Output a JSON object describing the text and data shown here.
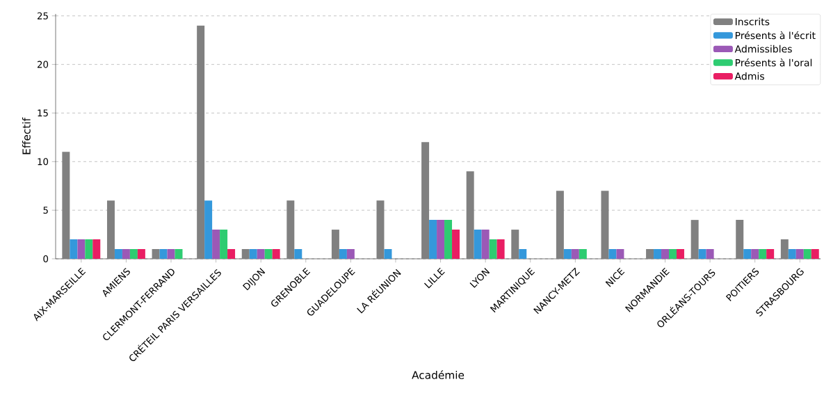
{
  "chart_data": {
    "type": "bar",
    "xlabel": "Académie",
    "ylabel": "Effectif",
    "categories": [
      "AIX-MARSEILLE",
      "AMIENS",
      "CLERMONT-FERRAND",
      "CRÉTEIL PARIS VERSAILLES",
      "DIJON",
      "GRENOBLE",
      "GUADELOUPE",
      "LA RÉUNION",
      "LILLE",
      "LYON",
      "MARTINIQUE",
      "NANCY-METZ",
      "NICE",
      "NORMANDIE",
      "ORLÉANS-TOURS",
      "POITIERS",
      "STRASBOURG"
    ],
    "series": [
      {
        "name": "Inscrits",
        "color": "#808080",
        "values": [
          11,
          6,
          1,
          24,
          1,
          6,
          3,
          6,
          12,
          9,
          3,
          7,
          7,
          1,
          4,
          4,
          2
        ]
      },
      {
        "name": "Présents à l'écrit",
        "color": "#3498db",
        "values": [
          2,
          1,
          1,
          6,
          1,
          1,
          1,
          1,
          4,
          3,
          1,
          1,
          1,
          1,
          1,
          1,
          1
        ]
      },
      {
        "name": "Admissibles",
        "color": "#9b59b6",
        "values": [
          2,
          1,
          1,
          3,
          1,
          0,
          1,
          0,
          4,
          3,
          0,
          1,
          1,
          1,
          1,
          1,
          1
        ]
      },
      {
        "name": "Présents à l'oral",
        "color": "#2ecc71",
        "values": [
          2,
          1,
          1,
          3,
          1,
          0,
          0,
          0,
          4,
          2,
          0,
          1,
          0,
          1,
          0,
          1,
          1
        ]
      },
      {
        "name": "Admis",
        "color": "#e91e63",
        "values": [
          2,
          1,
          0,
          1,
          1,
          0,
          0,
          0,
          3,
          2,
          0,
          0,
          0,
          1,
          0,
          1,
          1
        ]
      }
    ],
    "ylim": [
      0,
      25.2
    ],
    "yticks": [
      0,
      5,
      10,
      15,
      20,
      25
    ],
    "grid": "y",
    "legend": "top right"
  }
}
